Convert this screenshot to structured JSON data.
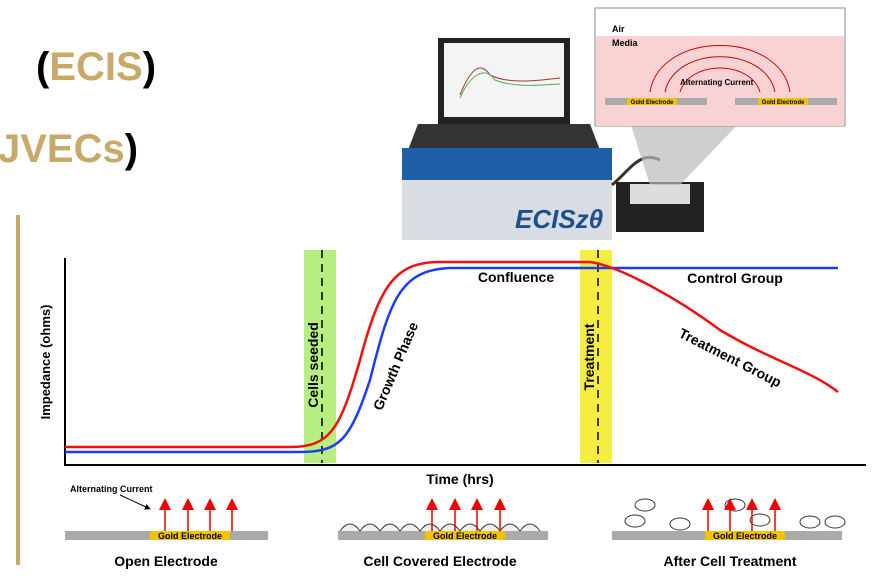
{
  "title": {
    "line1": {
      "open": "(",
      "term": "ECIS",
      "close": ")"
    },
    "line2": {
      "term": "JVECs",
      "close": ")"
    }
  },
  "device": {
    "brand": "ECISzθ"
  },
  "inset": {
    "air": "Air",
    "media": "Media",
    "current": "Alternating Current",
    "electrode_left": "Gold Electrode",
    "electrode_right": "Gold Electrode"
  },
  "graph": {
    "y_label": "Impedance (ohms)",
    "x_label": "Time (hrs)",
    "seeded": "Cells seeded",
    "growth": "Growth Phase",
    "confluence": "Confluence",
    "treatment": "Treatment",
    "control_group": "Control Group",
    "treatment_group": "Treatment Group"
  },
  "panels": {
    "current": "Alternating Current",
    "open": {
      "electrode": "Gold Electrode",
      "label": "Open Electrode"
    },
    "covered": {
      "electrode": "Gold Electrode",
      "label": "Cell Covered Electrode"
    },
    "treated": {
      "electrode": "Gold Electrode",
      "label": "After Cell Treatment"
    }
  }
}
